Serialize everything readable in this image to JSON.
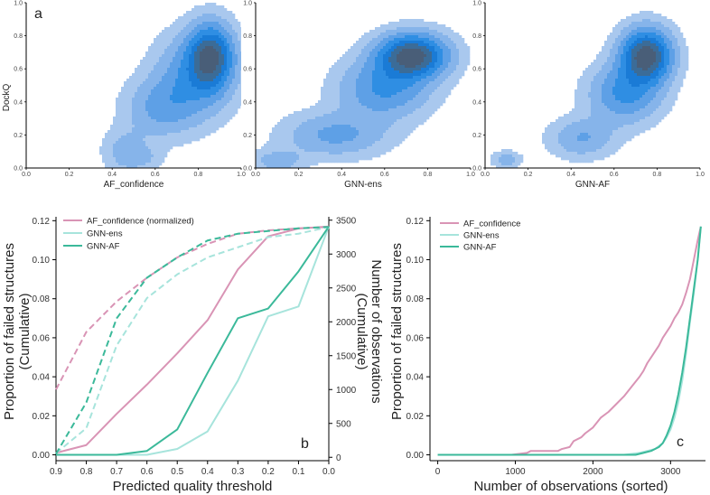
{
  "colors": {
    "af": "#d994b5",
    "gnn_ens": "#a7e4dc",
    "gnn_af": "#3bb99a",
    "density": [
      "#a9c8ee",
      "#86b4ea",
      "#5ea0e6",
      "#2f8ee3",
      "#1a7bd6",
      "#3b6c98",
      "#495e78"
    ]
  },
  "panel_a": {
    "label": "a",
    "ylabel": "DockQ",
    "yticks": [
      "0.0",
      "0.2",
      "0.4",
      "0.6",
      "0.8",
      "1.0"
    ],
    "xticks": [
      "0.0",
      "0.2",
      "0.4",
      "0.6",
      "0.8",
      "1.0"
    ]
  },
  "panel_b": {
    "label": "b",
    "xlabel": "Predicted quality threshold",
    "ylabel_line1": "Proportion of failed structures",
    "ylabel_line2": "(Cumulative)",
    "y2label_line1": "Number of observations",
    "y2label_line2": "(Cumulative)"
  },
  "panel_c": {
    "label": "c",
    "xlabel": "Number of observations (sorted)",
    "ylabel": "Proportion of failed structures"
  },
  "chart_data": [
    {
      "type": "heatmap",
      "title": "",
      "xlabel": "AF_confidence",
      "ylabel": "DockQ",
      "xlim": [
        0,
        1
      ],
      "ylim": [
        0,
        1
      ],
      "blobs": [
        {
          "center": [
            0.86,
            0.68
          ],
          "spread": [
            0.07,
            0.13
          ],
          "weight": 1.0
        },
        {
          "center": [
            0.78,
            0.55
          ],
          "spread": [
            0.12,
            0.17
          ],
          "weight": 0.5
        },
        {
          "center": [
            0.62,
            0.36
          ],
          "spread": [
            0.11,
            0.12
          ],
          "weight": 0.35
        },
        {
          "center": [
            0.46,
            0.1
          ],
          "spread": [
            0.07,
            0.09
          ],
          "weight": 0.25
        },
        {
          "center": [
            0.55,
            0.06
          ],
          "spread": [
            0.06,
            0.05
          ],
          "weight": 0.15
        }
      ]
    },
    {
      "type": "heatmap",
      "title": "",
      "xlabel": "GNN-ens",
      "ylabel": "",
      "xlim": [
        0,
        1
      ],
      "ylim": [
        0,
        1
      ],
      "blobs": [
        {
          "center": [
            0.73,
            0.68
          ],
          "spread": [
            0.11,
            0.09
          ],
          "weight": 1.0
        },
        {
          "center": [
            0.6,
            0.48
          ],
          "spread": [
            0.14,
            0.12
          ],
          "weight": 0.45
        },
        {
          "center": [
            0.37,
            0.2
          ],
          "spread": [
            0.16,
            0.09
          ],
          "weight": 0.32
        },
        {
          "center": [
            0.1,
            0.04
          ],
          "spread": [
            0.08,
            0.05
          ],
          "weight": 0.22
        }
      ]
    },
    {
      "type": "heatmap",
      "title": "",
      "xlabel": "GNN-AF",
      "ylabel": "",
      "xlim": [
        0,
        1
      ],
      "ylim": [
        0,
        1
      ],
      "blobs": [
        {
          "center": [
            0.75,
            0.68
          ],
          "spread": [
            0.08,
            0.11
          ],
          "weight": 1.0
        },
        {
          "center": [
            0.65,
            0.45
          ],
          "spread": [
            0.11,
            0.12
          ],
          "weight": 0.45
        },
        {
          "center": [
            0.45,
            0.18
          ],
          "spread": [
            0.1,
            0.08
          ],
          "weight": 0.28
        },
        {
          "center": [
            0.1,
            0.05
          ],
          "spread": [
            0.045,
            0.035
          ],
          "weight": 0.22
        }
      ]
    },
    {
      "type": "line",
      "title": "",
      "xlabel": "Predicted quality threshold",
      "ylabel": "Proportion of failed structures (Cumulative)",
      "y2label": "Number of observations (Cumulative)",
      "xlim": [
        0.9,
        0.0
      ],
      "ylim": [
        -0.003,
        0.122
      ],
      "y2lim": [
        -50,
        3550
      ],
      "xticks": [
        0.9,
        0.8,
        0.7,
        0.6,
        0.5,
        0.4,
        0.3,
        0.2,
        0.1,
        0.0
      ],
      "xticklabels": [
        "0.9",
        "0.8",
        "0.7",
        "0.6",
        "0.5",
        "0.4",
        "0.3",
        "0.2",
        "0.1",
        "0.0"
      ],
      "yticks": [
        0.0,
        0.02,
        0.04,
        0.06,
        0.08,
        0.1,
        0.12
      ],
      "yticklabels": [
        "0.00",
        "0.02",
        "0.04",
        "0.06",
        "0.08",
        "0.10",
        "0.12"
      ],
      "y2ticks": [
        0,
        500,
        1000,
        1500,
        2000,
        2500,
        3000,
        3500
      ],
      "y2ticklabels": [
        "0",
        "500",
        "1000",
        "1500",
        "2000",
        "2500",
        "3000",
        "3500"
      ],
      "x": [
        0.9,
        0.8,
        0.7,
        0.6,
        0.5,
        0.4,
        0.3,
        0.2,
        0.1,
        0.0
      ],
      "legend": "top-left",
      "series": [
        {
          "name": "AF_confidence (normalized)",
          "axis": "left",
          "style": "solid",
          "color": "#d994b5",
          "values": [
            0.001,
            0.005,
            0.021,
            0.036,
            0.052,
            0.069,
            0.095,
            0.112,
            0.116,
            0.117
          ]
        },
        {
          "name": "GNN-ens",
          "axis": "left",
          "style": "solid",
          "color": "#a7e4dc",
          "values": [
            0.0,
            0.0,
            0.0,
            0.0,
            0.003,
            0.012,
            0.038,
            0.071,
            0.076,
            0.117
          ]
        },
        {
          "name": "GNN-AF",
          "axis": "left",
          "style": "solid",
          "color": "#3bb99a",
          "values": [
            0.0,
            0.0,
            0.0,
            0.002,
            0.013,
            0.042,
            0.07,
            0.075,
            0.094,
            0.117
          ]
        },
        {
          "name": "AF_confidence (normalized) count",
          "axis": "right",
          "style": "dashed",
          "color": "#d994b5",
          "values": [
            1000,
            1850,
            2300,
            2650,
            2950,
            3150,
            3300,
            3350,
            3380,
            3400
          ]
        },
        {
          "name": "GNN-ens count",
          "axis": "right",
          "style": "dashed",
          "color": "#a7e4dc",
          "values": [
            60,
            430,
            1650,
            2350,
            2700,
            2950,
            3100,
            3250,
            3300,
            3400
          ]
        },
        {
          "name": "GNN-AF count",
          "axis": "right",
          "style": "dashed",
          "color": "#3bb99a",
          "values": [
            50,
            810,
            2050,
            2650,
            2950,
            3200,
            3300,
            3340,
            3380,
            3400
          ]
        }
      ]
    },
    {
      "type": "line",
      "title": "",
      "xlabel": "Number of observations (sorted)",
      "ylabel": "Proportion of failed structures",
      "xlim": [
        -100,
        3450
      ],
      "ylim": [
        -0.003,
        0.122
      ],
      "xticks": [
        0,
        1000,
        2000,
        3000
      ],
      "xticklabels": [
        "0",
        "1000",
        "2000",
        "3000"
      ],
      "yticks": [
        0.0,
        0.02,
        0.04,
        0.06,
        0.08,
        0.1,
        0.12
      ],
      "yticklabels": [
        "0.00",
        "0.02",
        "0.04",
        "0.06",
        "0.08",
        "0.10",
        "0.12"
      ],
      "legend": "top-left",
      "series": [
        {
          "name": "AF_confidence",
          "color": "#d994b5",
          "x": [
            0,
            950,
            1150,
            1200,
            1550,
            1600,
            1700,
            1750,
            1850,
            1900,
            2000,
            2100,
            2200,
            2300,
            2400,
            2500,
            2600,
            2650,
            2700,
            2750,
            2800,
            2850,
            2900,
            2950,
            3000,
            3050,
            3100,
            3150,
            3200,
            3250,
            3300,
            3350,
            3390
          ],
          "y": [
            0.0,
            0.0,
            0.001,
            0.002,
            0.002,
            0.003,
            0.004,
            0.007,
            0.009,
            0.011,
            0.014,
            0.019,
            0.022,
            0.026,
            0.03,
            0.035,
            0.04,
            0.043,
            0.047,
            0.05,
            0.053,
            0.056,
            0.06,
            0.063,
            0.066,
            0.07,
            0.073,
            0.077,
            0.083,
            0.09,
            0.1,
            0.11,
            0.117
          ]
        },
        {
          "name": "GNN-ens",
          "color": "#a7e4dc",
          "x": [
            0,
            2400,
            2600,
            2700,
            2800,
            2900,
            2950,
            3000,
            3050,
            3100,
            3150,
            3200,
            3250,
            3300,
            3350,
            3390
          ],
          "y": [
            0.0,
            0.0,
            0.001,
            0.002,
            0.003,
            0.006,
            0.009,
            0.013,
            0.019,
            0.027,
            0.038,
            0.052,
            0.068,
            0.083,
            0.1,
            0.117
          ]
        },
        {
          "name": "GNN-AF",
          "color": "#3bb99a",
          "x": [
            0,
            2550,
            2650,
            2750,
            2850,
            2900,
            2950,
            3000,
            3050,
            3100,
            3150,
            3200,
            3250,
            3300,
            3350,
            3390
          ],
          "y": [
            0.0,
            0.0,
            0.001,
            0.002,
            0.004,
            0.006,
            0.01,
            0.015,
            0.022,
            0.031,
            0.042,
            0.055,
            0.07,
            0.085,
            0.1,
            0.117
          ]
        }
      ]
    }
  ]
}
